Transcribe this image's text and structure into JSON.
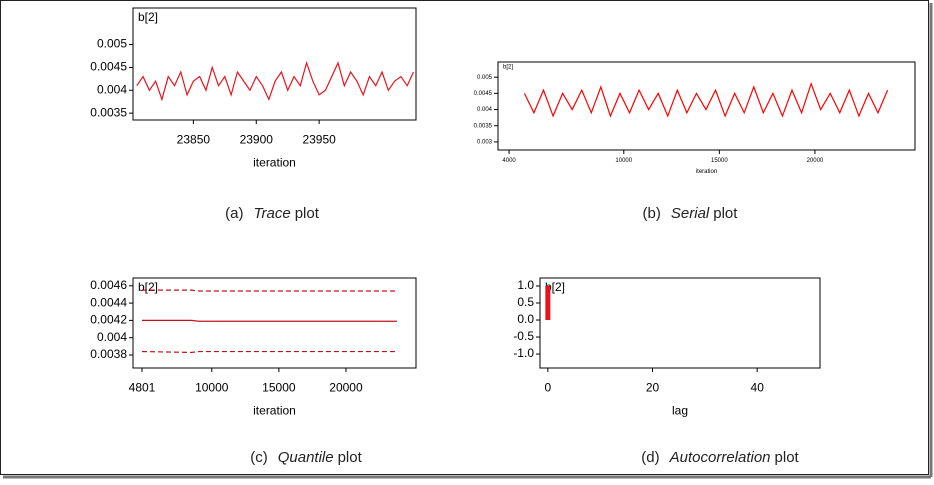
{
  "chart_data": [
    {
      "type": "line",
      "title": "b[2]",
      "xlabel": "iteration",
      "color": "#e8141c",
      "x": [
        23805,
        23810,
        23815,
        23820,
        23825,
        23830,
        23835,
        23840,
        23845,
        23850,
        23855,
        23860,
        23865,
        23870,
        23875,
        23880,
        23885,
        23890,
        23895,
        23900,
        23905,
        23910,
        23915,
        23920,
        23925,
        23930,
        23935,
        23940,
        23945,
        23950,
        23955,
        23960,
        23965,
        23970,
        23975,
        23980,
        23985,
        23990,
        23995,
        24000,
        24005,
        24010,
        24015,
        24020,
        24025
      ],
      "values": [
        0.0041,
        0.0043,
        0.004,
        0.0042,
        0.0038,
        0.0043,
        0.0041,
        0.0044,
        0.0039,
        0.0042,
        0.0043,
        0.004,
        0.0045,
        0.0041,
        0.0043,
        0.0039,
        0.0044,
        0.0042,
        0.004,
        0.0043,
        0.0041,
        0.0038,
        0.0042,
        0.0044,
        0.004,
        0.0043,
        0.0041,
        0.0046,
        0.0042,
        0.0039,
        0.004,
        0.0043,
        0.0046,
        0.0041,
        0.0044,
        0.0042,
        0.0039,
        0.0043,
        0.0041,
        0.0044,
        0.004,
        0.0042,
        0.0043,
        0.0041,
        0.0044
      ],
      "xlim": [
        23802,
        24027
      ],
      "xticks": [
        23850,
        23900,
        23950
      ],
      "ylim": [
        0.00335,
        0.0058
      ],
      "yticks": [
        0.005,
        0.0045,
        0.004,
        0.0035
      ],
      "caption": {
        "label": "(a)",
        "emphasis": "Trace",
        "text": "plot"
      }
    },
    {
      "type": "line",
      "title": "b[2]",
      "xlabel": "iteration",
      "color": "#ff0000",
      "x": [
        4801,
        5301,
        5801,
        6301,
        6801,
        7301,
        7801,
        8301,
        8801,
        9301,
        9801,
        10301,
        10801,
        11301,
        11801,
        12301,
        12801,
        13301,
        13801,
        14301,
        14801,
        15301,
        15801,
        16301,
        16801,
        17301,
        17801,
        18301,
        18801,
        19301,
        19801,
        20301,
        20801,
        21301,
        21801,
        22301,
        22801,
        23301,
        23801
      ],
      "values": [
        0.0045,
        0.0039,
        0.0046,
        0.0038,
        0.0045,
        0.004,
        0.0046,
        0.0039,
        0.0047,
        0.0038,
        0.0045,
        0.0039,
        0.0046,
        0.004,
        0.0045,
        0.0038,
        0.0046,
        0.0039,
        0.0045,
        0.004,
        0.0046,
        0.0038,
        0.0045,
        0.0039,
        0.0047,
        0.0039,
        0.0045,
        0.0038,
        0.0046,
        0.0039,
        0.0048,
        0.004,
        0.0045,
        0.0039,
        0.0046,
        0.0038,
        0.0045,
        0.0039,
        0.0046
      ],
      "xlim": [
        3420,
        25236
      ],
      "xticks": [
        4000,
        10000,
        15000,
        20000
      ],
      "ylim": [
        0.00275,
        0.00547
      ],
      "yticks": [
        0.005,
        0.0045,
        0.004,
        0.0035,
        0.003
      ],
      "caption": {
        "label": "(b)",
        "emphasis": "Serial",
        "text": "plot"
      }
    },
    {
      "type": "line",
      "title": "b[2]",
      "xlabel": "iteration",
      "x": [
        4801,
        8500,
        9000,
        23801
      ],
      "series": [
        {
          "color": "#c0141c",
          "dash": true,
          "values": [
            0.00455,
            0.00455,
            0.00454,
            0.00454
          ]
        },
        {
          "color": "#c0141c",
          "dash": false,
          "values": [
            0.0042,
            0.0042,
            0.00419,
            0.00419
          ]
        },
        {
          "color": "#c0141c",
          "dash": true,
          "values": [
            0.00384,
            0.00383,
            0.00384,
            0.00384
          ]
        }
      ],
      "xlim": [
        4130,
        25220
      ],
      "xticks": [
        4801,
        10000,
        15000,
        20000
      ],
      "ylim": [
        0.00365,
        0.00469
      ],
      "yticks": [
        0.0046,
        0.0044,
        0.0042,
        0.004,
        0.0038
      ],
      "caption": {
        "label": "(c)",
        "emphasis": "Quantile",
        "text": "plot"
      }
    },
    {
      "type": "bar",
      "title": "b[2]",
      "xlabel": "lag",
      "color": "#e8141c",
      "x": [
        0
      ],
      "values": [
        1.0
      ],
      "xlim": [
        -1.5,
        52
      ],
      "xticks": [
        0,
        20,
        40
      ],
      "ylim": [
        -1.41,
        1.235
      ],
      "yticks": [
        {
          "value": 1,
          "label": "1.0"
        },
        0.5,
        {
          "value": 0,
          "label": "0.0"
        },
        -0.5,
        {
          "value": -1,
          "label": "-1.0"
        }
      ],
      "caption": {
        "label": "(d)",
        "emphasis": "Autocorrelation",
        "text": "plot"
      }
    }
  ]
}
